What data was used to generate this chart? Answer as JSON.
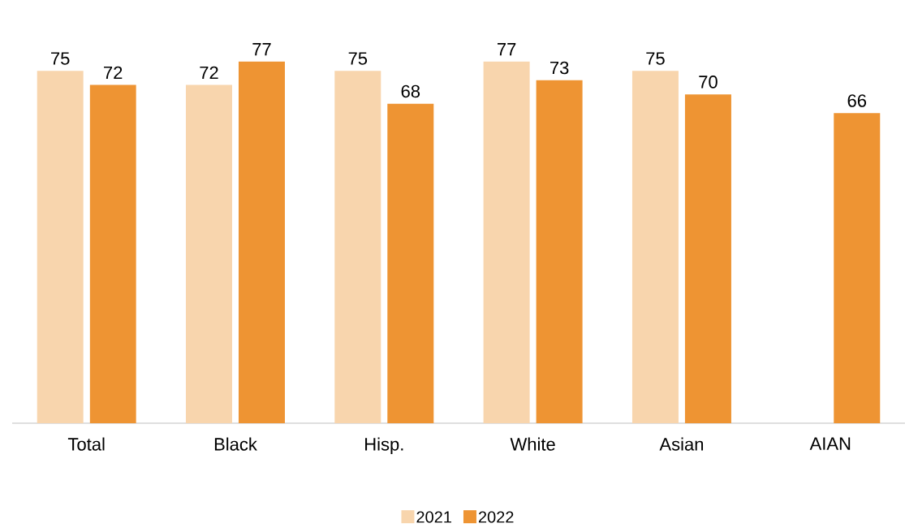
{
  "chart_data": {
    "type": "bar",
    "data_labels": true,
    "legend": "bottom",
    "categories": [
      "Total",
      "Black",
      "Hisp.",
      "White",
      "Asian",
      "AIAN"
    ],
    "series": [
      {
        "name": "2021",
        "color": "#f8d5ad",
        "values": [
          75,
          72,
          75,
          77,
          75,
          null
        ]
      },
      {
        "name": "2022",
        "color": "#ee9433",
        "values": [
          72,
          77,
          68,
          73,
          70,
          66
        ]
      }
    ]
  }
}
